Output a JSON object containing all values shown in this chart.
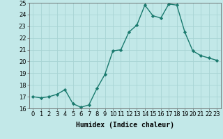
{
  "x": [
    0,
    1,
    2,
    3,
    4,
    5,
    6,
    7,
    8,
    9,
    10,
    11,
    12,
    13,
    14,
    15,
    16,
    17,
    18,
    19,
    20,
    21,
    22,
    23
  ],
  "y": [
    17.0,
    16.9,
    17.0,
    17.2,
    17.6,
    16.4,
    16.1,
    16.3,
    17.7,
    18.9,
    20.9,
    21.0,
    22.5,
    23.1,
    24.8,
    23.9,
    23.7,
    24.9,
    24.8,
    22.5,
    20.9,
    20.5,
    20.3,
    20.1
  ],
  "line_color": "#1a7a6e",
  "marker": "D",
  "marker_size": 2.2,
  "bg_color": "#c2e8e8",
  "grid_color": "#a8d4d4",
  "xlabel": "Humidex (Indice chaleur)",
  "xlim": [
    -0.5,
    23.5
  ],
  "ylim": [
    16,
    25
  ],
  "xticks": [
    0,
    1,
    2,
    3,
    4,
    5,
    6,
    7,
    8,
    9,
    10,
    11,
    12,
    13,
    14,
    15,
    16,
    17,
    18,
    19,
    20,
    21,
    22,
    23
  ],
  "yticks": [
    16,
    17,
    18,
    19,
    20,
    21,
    22,
    23,
    24,
    25
  ],
  "xlabel_fontsize": 7.0,
  "tick_fontsize": 6.0
}
